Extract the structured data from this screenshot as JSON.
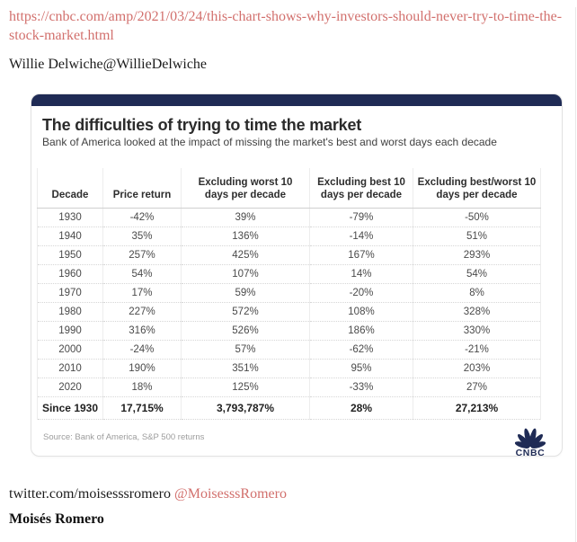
{
  "page": {
    "url": "https://cnbc.com/amp/2021/03/24/this-chart-shows-why-investors-should-never-try-to-time-the-stock-market.html",
    "author_line": "Willie Delwiche@WillieDelwiche",
    "twitter_plain": "twitter.com/moisesssromero",
    "twitter_handle": "@MoisesssRomero",
    "author_name": "Moisés Romero",
    "link_color": "#d2706d"
  },
  "card": {
    "title": "The difficulties of trying to time the market",
    "subtitle": "Bank of America looked at the impact of missing the market's best and worst days each decade",
    "source": "Source: Bank of America, S&P 500 returns",
    "logo_text": "CNBC",
    "accent_color": "#1f2b55"
  },
  "chart_data": {
    "type": "table",
    "title": "The difficulties of trying to time the market",
    "subtitle": "Bank of America looked at the impact of missing the market's best and worst days each decade",
    "columns": [
      "Decade",
      "Price return",
      "Excluding worst 10 days per decade",
      "Excluding best 10 days per decade",
      "Excluding best/worst 10 days per decade"
    ],
    "rows": [
      [
        "1930",
        "-42%",
        "39%",
        "-79%",
        "-50%"
      ],
      [
        "1940",
        "35%",
        "136%",
        "-14%",
        "51%"
      ],
      [
        "1950",
        "257%",
        "425%",
        "167%",
        "293%"
      ],
      [
        "1960",
        "54%",
        "107%",
        "14%",
        "54%"
      ],
      [
        "1970",
        "17%",
        "59%",
        "-20%",
        "8%"
      ],
      [
        "1980",
        "227%",
        "572%",
        "108%",
        "328%"
      ],
      [
        "1990",
        "316%",
        "526%",
        "186%",
        "330%"
      ],
      [
        "2000",
        "-24%",
        "57%",
        "-62%",
        "-21%"
      ],
      [
        "2010",
        "190%",
        "351%",
        "95%",
        "203%"
      ],
      [
        "2020",
        "18%",
        "125%",
        "-33%",
        "27%"
      ]
    ],
    "total_row": [
      "Since 1930",
      "17,715%",
      "3,793,787%",
      "28%",
      "27,213%"
    ],
    "source": "Source: Bank of America, S&P 500 returns"
  }
}
